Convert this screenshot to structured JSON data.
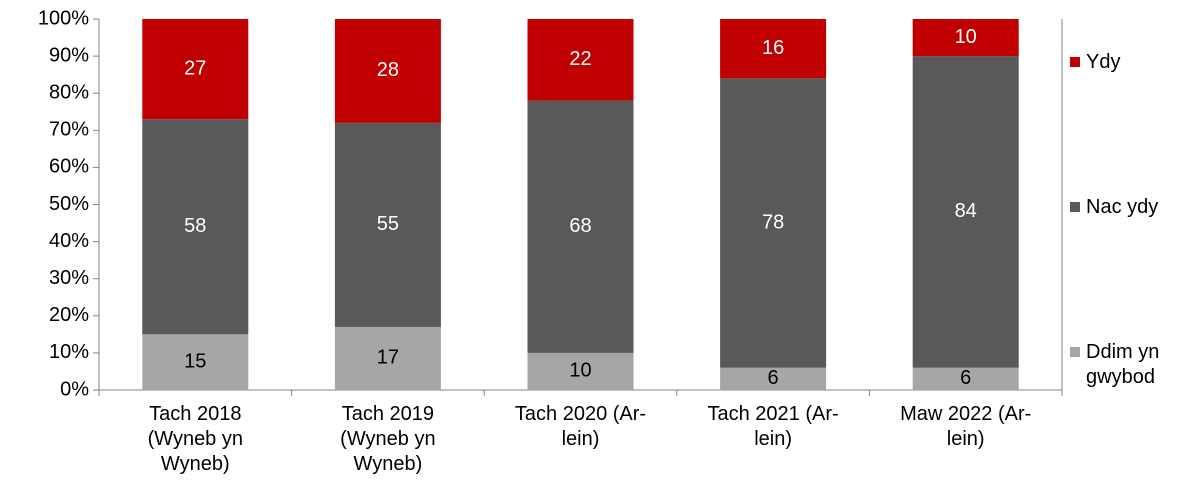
{
  "chart_data": {
    "type": "stacked_bar",
    "categories": [
      "Tach 2018 (Wyneb yn Wyneb)",
      "Tach 2019 (Wyneb yn Wyneb)",
      "Tach 2020 (Ar-lein)",
      "Tach 2021 (Ar-lein)",
      "Maw 2022 (Ar-lein)"
    ],
    "series": [
      {
        "name": "Ddim yn gwybod",
        "color": "#a6a6a6",
        "label_color": "#000000",
        "values": [
          15,
          17,
          10,
          6,
          6
        ]
      },
      {
        "name": "Nac ydy",
        "color": "#595959",
        "label_color": "#ffffff",
        "values": [
          58,
          55,
          68,
          78,
          84
        ]
      },
      {
        "name": "Ydy",
        "color": "#c00000",
        "label_color": "#ffffff",
        "values": [
          27,
          28,
          22,
          16,
          10
        ]
      }
    ],
    "ylim": [
      0,
      100
    ],
    "yticks": [
      {
        "value": 0,
        "label": "0%"
      },
      {
        "value": 10,
        "label": "10%"
      },
      {
        "value": 20,
        "label": "20%"
      },
      {
        "value": 30,
        "label": "30%"
      },
      {
        "value": 40,
        "label": "40%"
      },
      {
        "value": 50,
        "label": "50%"
      },
      {
        "value": 60,
        "label": "60%"
      },
      {
        "value": 70,
        "label": "70%"
      },
      {
        "value": 80,
        "label": "80%"
      },
      {
        "value": 90,
        "label": "90%"
      },
      {
        "value": 100,
        "label": "100%"
      }
    ],
    "legend": "right",
    "grid": false
  }
}
